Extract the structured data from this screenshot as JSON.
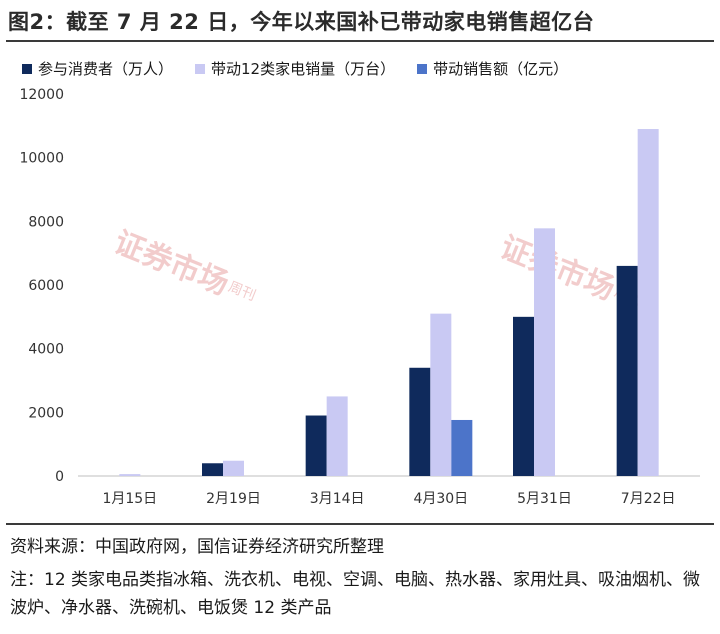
{
  "title": "图2：截至 7 月 22 日，今年以来国补已带动家电销售超亿台",
  "watermark": {
    "text": "证券市场",
    "suffix": "周刊"
  },
  "source": "资料来源：中国政府网，国信证券经济研究所整理",
  "note": "注：12 类家电品类指冰箱、洗衣机、电视、空调、电脑、热水器、家用灶具、吸油烟机、微波炉、净水器、洗碗机、电饭煲 12 类产品",
  "colors": {
    "series1": "#0f2a5c",
    "series2": "#c9c9f3",
    "series3": "#4c74c9"
  },
  "chart_data": {
    "type": "bar",
    "categories": [
      "1月15日",
      "2月19日",
      "3月14日",
      "4月30日",
      "5月31日",
      "7月22日"
    ],
    "series": [
      {
        "name": "参与消费者（万人）",
        "values": [
          null,
          400,
          1900,
          3400,
          5000,
          6600
        ]
      },
      {
        "name": "带动12类家电销量（万台）",
        "values": [
          60,
          480,
          2500,
          5100,
          7780,
          10900
        ]
      },
      {
        "name": "带动销售额（亿元）",
        "values": [
          null,
          null,
          null,
          1760,
          null,
          null
        ]
      }
    ],
    "ylim": [
      0,
      12000
    ],
    "yticks": [
      0,
      2000,
      4000,
      6000,
      8000,
      10000,
      12000
    ],
    "grid": false,
    "legend": "top"
  }
}
